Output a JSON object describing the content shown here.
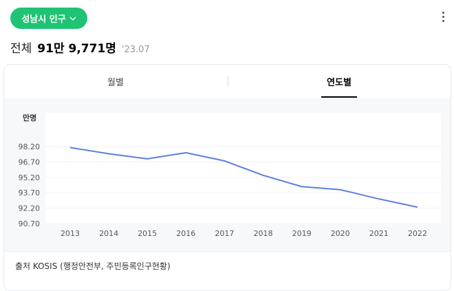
{
  "header": {
    "city_label": "성남시 인구",
    "dropdown_icon": "chevron-down-icon",
    "more_icon": "more-vertical-icon"
  },
  "summary": {
    "label": "전체",
    "value": "91만 9,771명",
    "date": "'23.07"
  },
  "tabs": [
    {
      "label": "월별",
      "active": false
    },
    {
      "label": "연도별",
      "active": true
    }
  ],
  "colors": {
    "accent": "#1ec474",
    "line": "#5b7fde"
  },
  "chart_data": {
    "type": "line",
    "ylabel": "만명",
    "categories": [
      "2013",
      "2014",
      "2015",
      "2016",
      "2017",
      "2018",
      "2019",
      "2020",
      "2021",
      "2022"
    ],
    "series": [
      {
        "values": [
          98.1,
          97.5,
          97.0,
          97.6,
          96.8,
          95.4,
          94.3,
          94.0,
          93.1,
          92.3
        ]
      }
    ],
    "yticks": [
      "98.20",
      "96.70",
      "95.20",
      "93.70",
      "92.20",
      "90.70"
    ],
    "ylim": [
      90.7,
      98.2
    ],
    "grid": true
  },
  "source": "출처 KOSIS (행정안전부, 주민등록인구현황)"
}
